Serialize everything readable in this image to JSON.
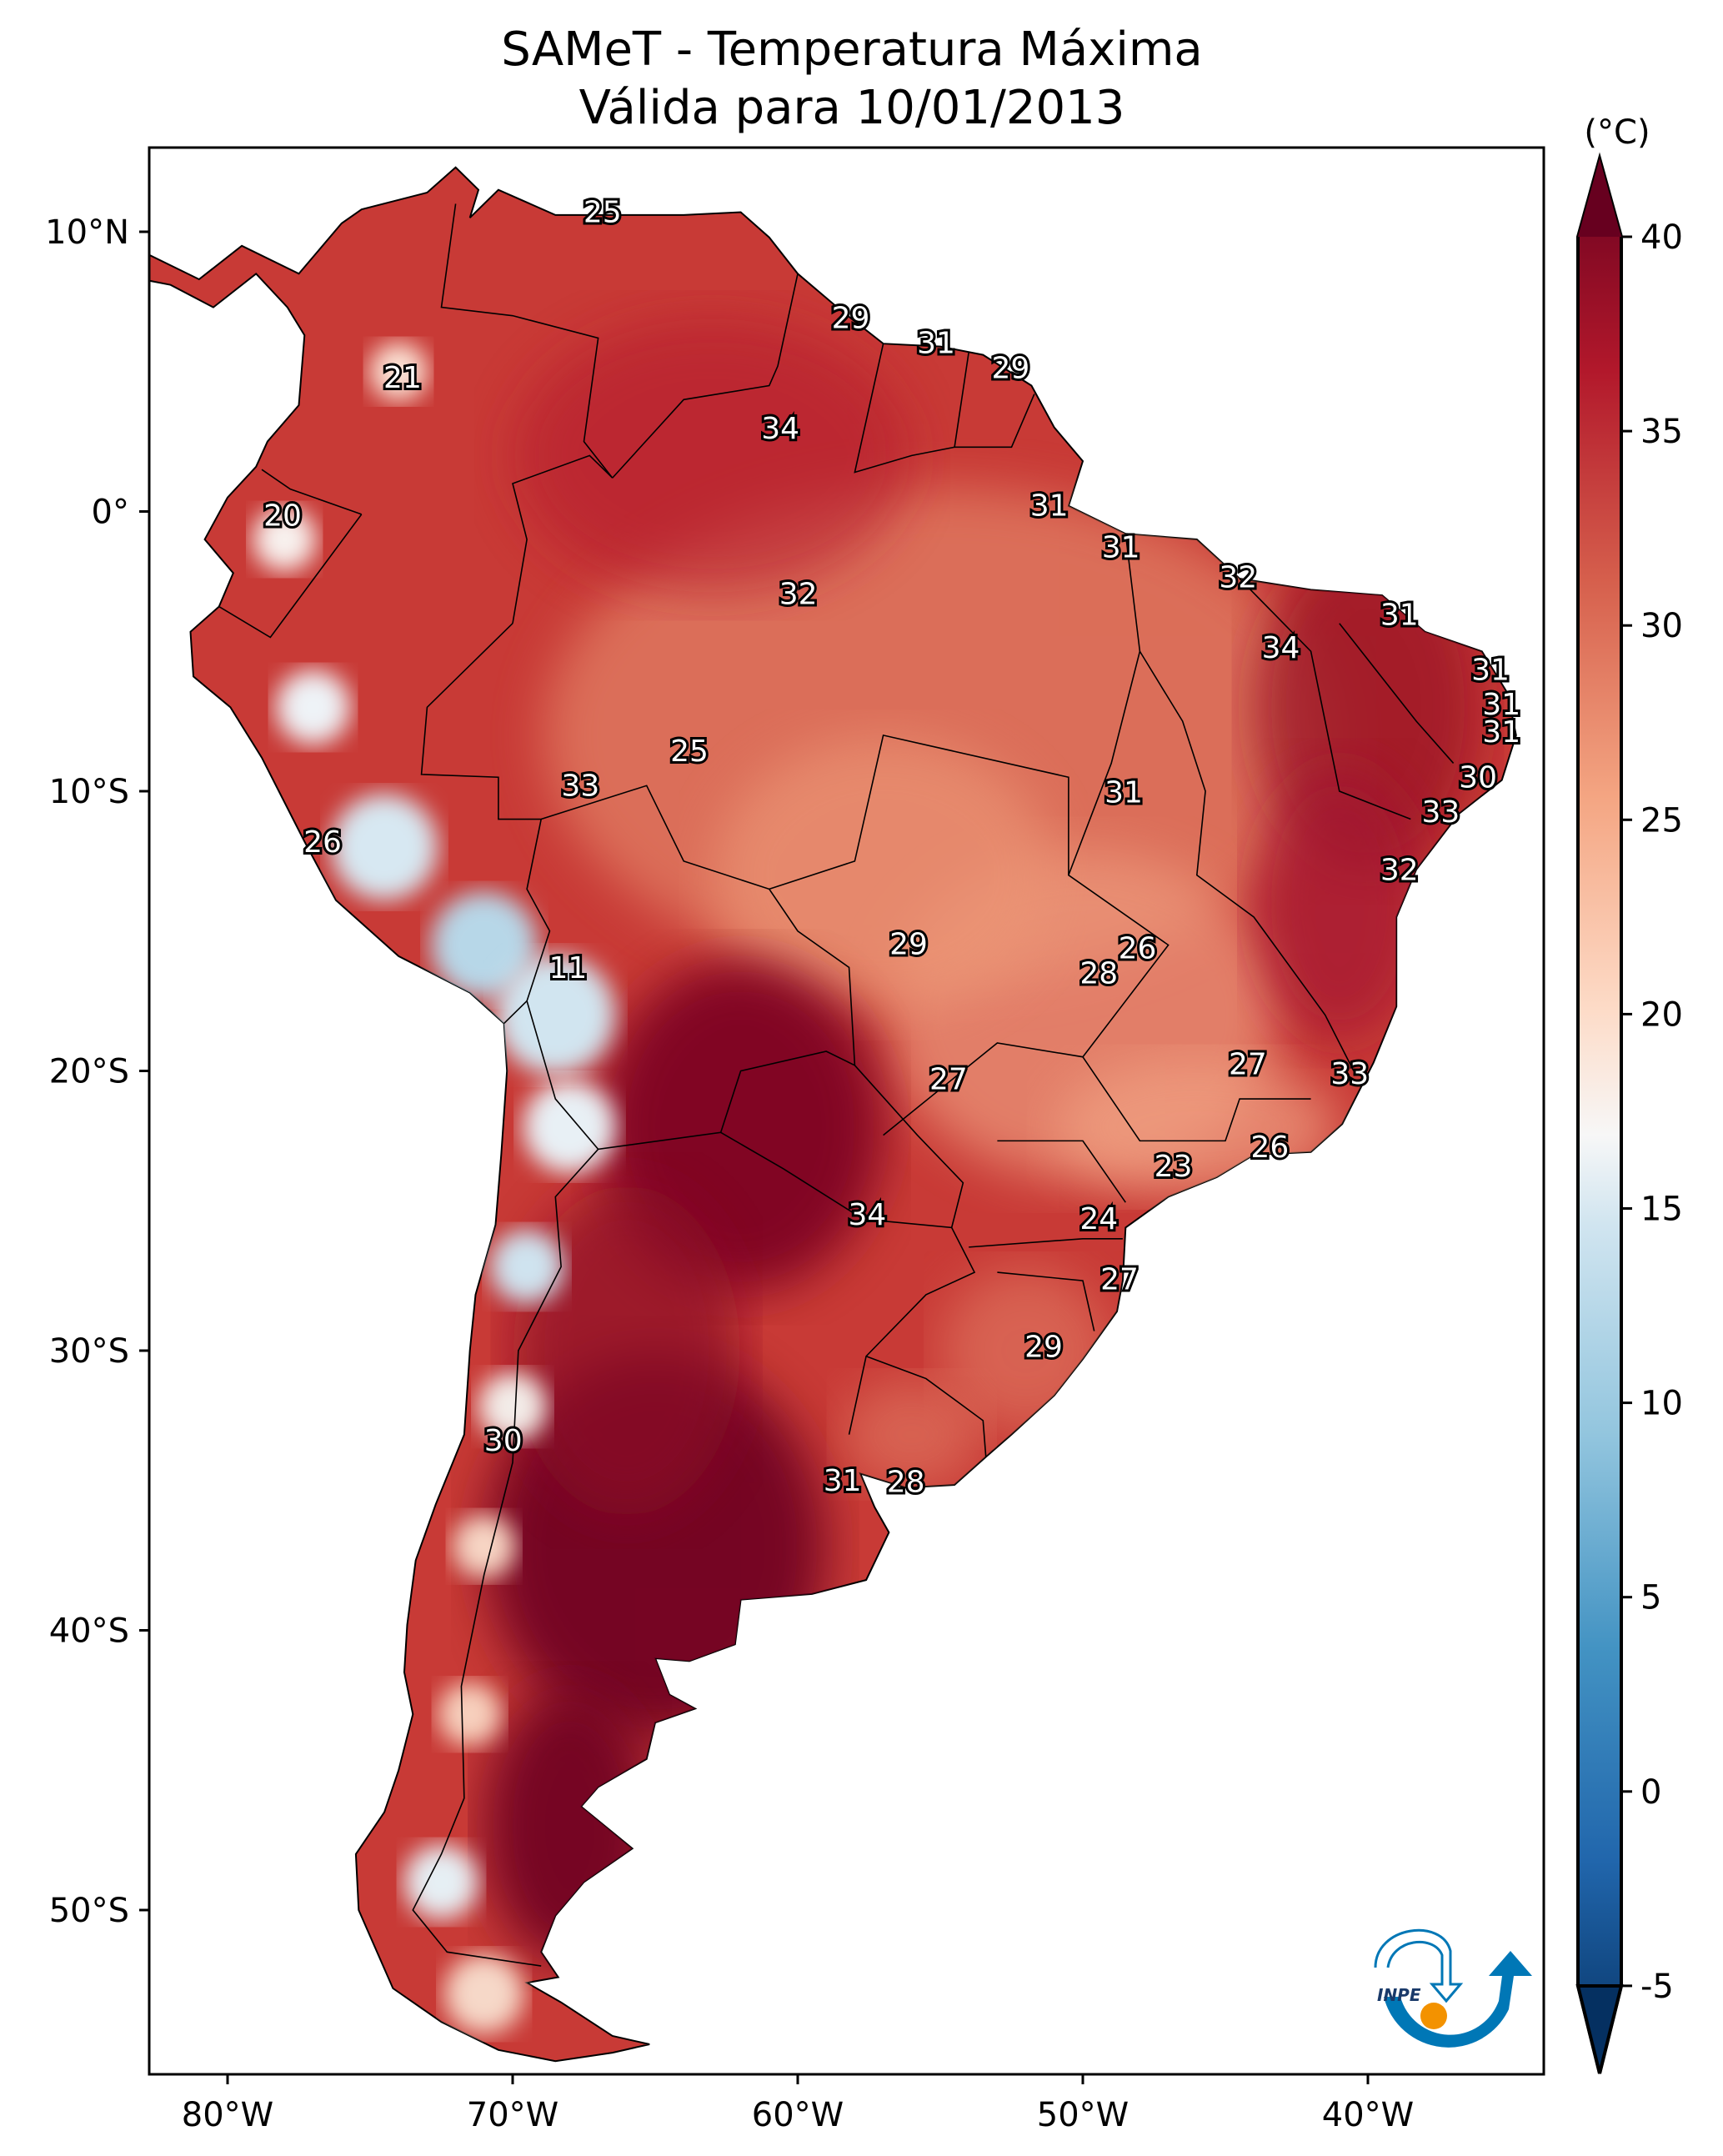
{
  "title": {
    "line1": "SAMeT - Temperatura Máxima",
    "line2": "Válida para 10/01/2013"
  },
  "map": {
    "lon_ticks": [
      "80°W",
      "70°W",
      "60°W",
      "50°W",
      "40°W"
    ],
    "lat_ticks": [
      "10°N",
      "0°",
      "10°S",
      "20°S",
      "30°S",
      "40°S",
      "50°S"
    ],
    "contour_labels": [
      "25",
      "29",
      "31",
      "29",
      "21",
      "34",
      "31",
      "20",
      "31",
      "32",
      "32",
      "31",
      "34",
      "31",
      "31",
      "31",
      "25",
      "30",
      "33",
      "31",
      "33",
      "26",
      "32",
      "29",
      "26",
      "11",
      "28",
      "27",
      "27",
      "33",
      "26",
      "23",
      "34",
      "24",
      "27",
      "29",
      "30",
      "31",
      "28"
    ]
  },
  "colorbar": {
    "unit": "(°C)",
    "ticks": [
      "40",
      "35",
      "30",
      "25",
      "20",
      "15",
      "10",
      "5",
      "0",
      "-5"
    ],
    "min": -5,
    "max": 40,
    "colors": {
      "40": "#67001f",
      "35": "#b2182b",
      "30": "#d6604d",
      "25": "#f4a582",
      "20": "#fddbc7",
      "17": "#f7f7f7",
      "15": "#d1e5f0",
      "10": "#92c5de",
      "5": "#4393c3",
      "0": "#2166ac",
      "-5": "#053061"
    }
  },
  "logo": {
    "text": "INPE"
  }
}
